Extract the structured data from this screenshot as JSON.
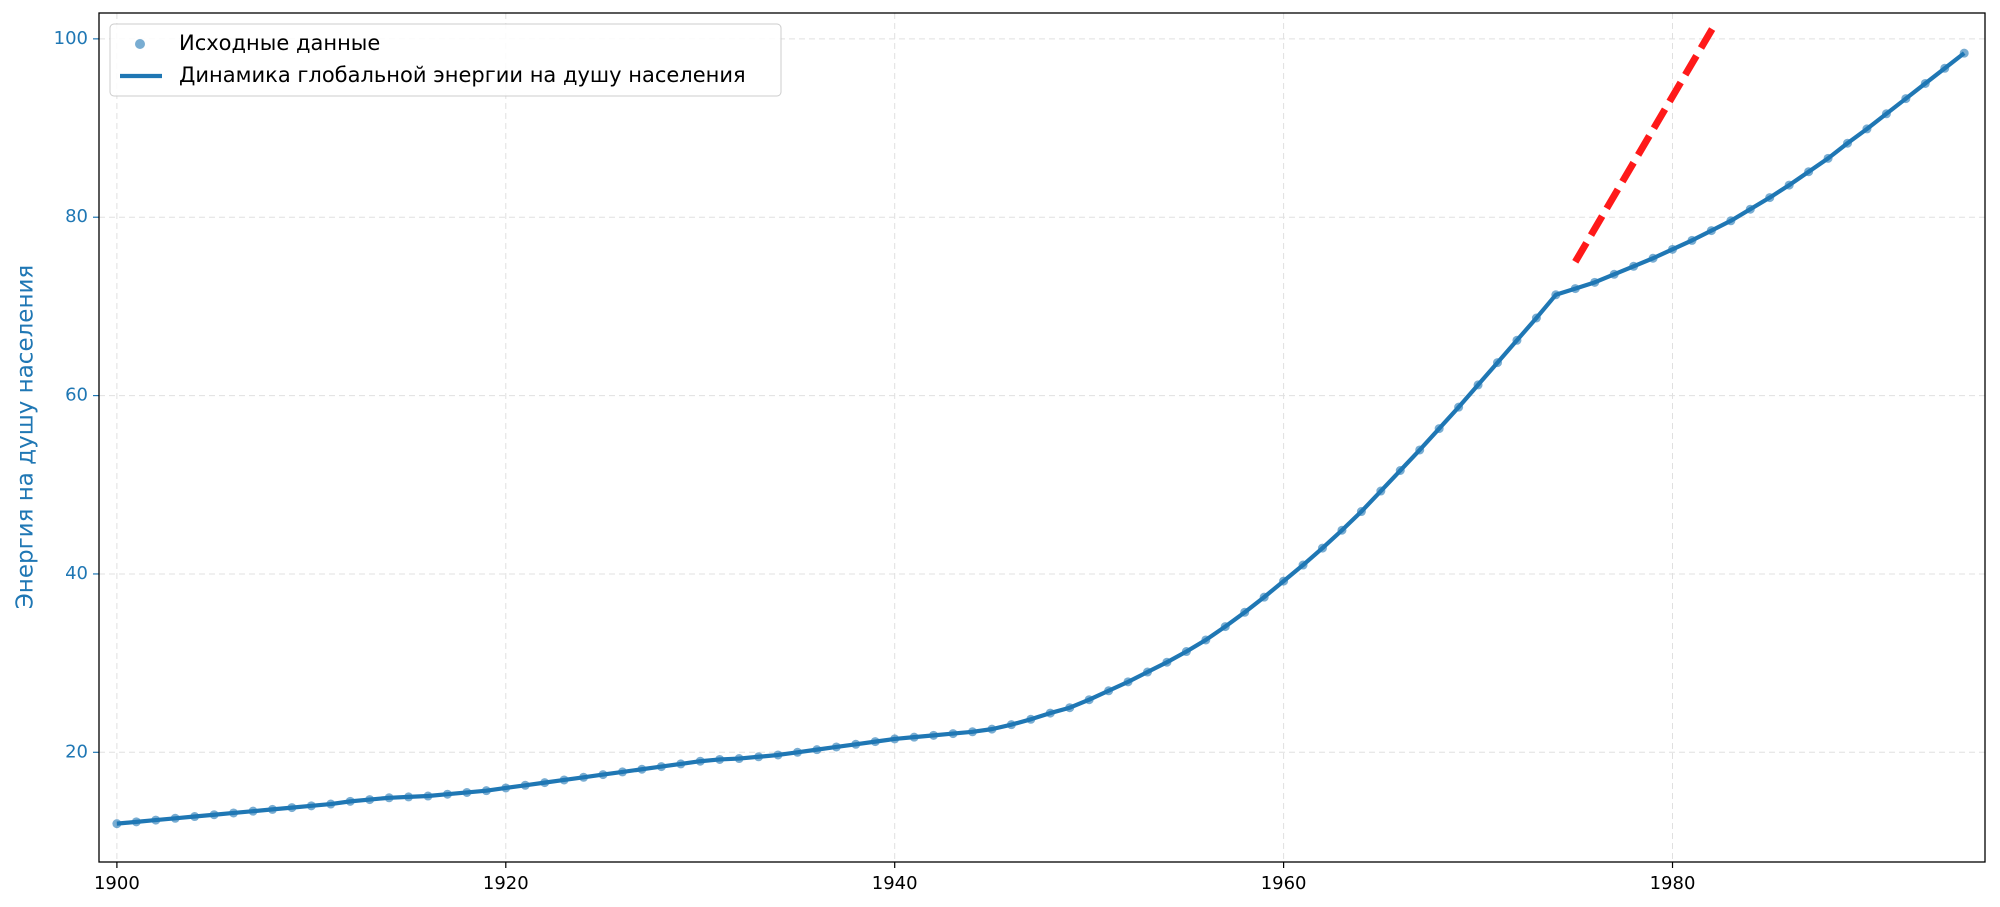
{
  "chart_data": {
    "type": "line",
    "ylabel": "Энергия на душу населения",
    "x": [
      1900,
      1901,
      1902,
      1903,
      1904,
      1905,
      1906,
      1907,
      1908,
      1909,
      1910,
      1911,
      1912,
      1913,
      1914,
      1915,
      1916,
      1917,
      1918,
      1919,
      1920,
      1921,
      1922,
      1923,
      1924,
      1925,
      1926,
      1927,
      1928,
      1929,
      1930,
      1931,
      1932,
      1933,
      1934,
      1935,
      1936,
      1937,
      1938,
      1939,
      1940,
      1941,
      1942,
      1943,
      1944,
      1945,
      1946,
      1947,
      1948,
      1949,
      1950,
      1951,
      1952,
      1953,
      1954,
      1955,
      1956,
      1957,
      1958,
      1959,
      1960,
      1961,
      1962,
      1963,
      1964,
      1965,
      1966,
      1967,
      1968,
      1969,
      1970,
      1971,
      1972,
      1973,
      1974,
      1975,
      1976,
      1977,
      1978,
      1979,
      1980,
      1981,
      1982,
      1983,
      1984,
      1985,
      1986,
      1987,
      1988,
      1989,
      1990,
      1991,
      1992,
      1993,
      1994,
      1995
    ],
    "series": [
      {
        "name": "Исходные данные",
        "style": "points",
        "color": "#1f77b4",
        "values": [
          12.0,
          12.2,
          12.4,
          12.6,
          12.8,
          13.0,
          13.2,
          13.4,
          13.6,
          13.8,
          14.0,
          14.2,
          14.5,
          14.7,
          14.9,
          15.0,
          15.1,
          15.3,
          15.5,
          15.7,
          16.0,
          16.3,
          16.6,
          16.9,
          17.2,
          17.5,
          17.8,
          18.1,
          18.4,
          18.7,
          19.0,
          19.2,
          19.3,
          19.5,
          19.7,
          20.0,
          20.3,
          20.6,
          20.9,
          21.2,
          21.5,
          21.7,
          21.9,
          22.1,
          22.3,
          22.6,
          23.1,
          23.7,
          24.4,
          25.0,
          25.9,
          26.9,
          27.9,
          29.0,
          30.1,
          31.3,
          32.6,
          34.1,
          35.7,
          37.4,
          39.2,
          41.0,
          42.9,
          44.9,
          47.0,
          49.3,
          51.6,
          53.9,
          56.3,
          58.7,
          61.2,
          63.7,
          66.2,
          68.7,
          71.3,
          72.0,
          72.7,
          73.6,
          74.5,
          75.4,
          76.4,
          77.4,
          78.5,
          79.6,
          80.9,
          82.2,
          83.6,
          85.1,
          86.6,
          88.3,
          89.9,
          91.6,
          93.3,
          95.0,
          96.7,
          98.4
        ]
      },
      {
        "name": "Динамика глобальной энергии на душу населения",
        "style": "line",
        "color": "#1f77b4",
        "values": [
          12.0,
          12.2,
          12.4,
          12.6,
          12.8,
          13.0,
          13.2,
          13.4,
          13.6,
          13.8,
          14.0,
          14.2,
          14.5,
          14.7,
          14.9,
          15.0,
          15.1,
          15.3,
          15.5,
          15.7,
          16.0,
          16.3,
          16.6,
          16.9,
          17.2,
          17.5,
          17.8,
          18.1,
          18.4,
          18.7,
          19.0,
          19.2,
          19.3,
          19.5,
          19.7,
          20.0,
          20.3,
          20.6,
          20.9,
          21.2,
          21.5,
          21.7,
          21.9,
          22.1,
          22.3,
          22.6,
          23.1,
          23.7,
          24.4,
          25.0,
          25.9,
          26.9,
          27.9,
          29.0,
          30.1,
          31.3,
          32.6,
          34.1,
          35.7,
          37.4,
          39.2,
          41.0,
          42.9,
          44.9,
          47.0,
          49.3,
          51.6,
          53.9,
          56.3,
          58.7,
          61.2,
          63.7,
          66.2,
          68.7,
          71.3,
          72.0,
          72.7,
          73.6,
          74.5,
          75.4,
          76.4,
          77.4,
          78.5,
          79.6,
          80.9,
          82.2,
          83.6,
          85.1,
          86.6,
          88.3,
          89.9,
          91.6,
          93.3,
          95.0,
          96.7,
          98.4
        ]
      }
    ],
    "trend_line": {
      "x": [
        1975,
        1982.2
      ],
      "values": [
        75.0,
        101.7
      ],
      "color": "#ff0000"
    },
    "xlim": [
      1899.08,
      1996.07
    ],
    "ylim": [
      7.7,
      102.9
    ],
    "xticks": [
      1900,
      1920,
      1940,
      1960,
      1980
    ],
    "yticks": [
      20,
      40,
      60,
      80,
      100
    ],
    "grid": true,
    "legend": "upper left"
  }
}
